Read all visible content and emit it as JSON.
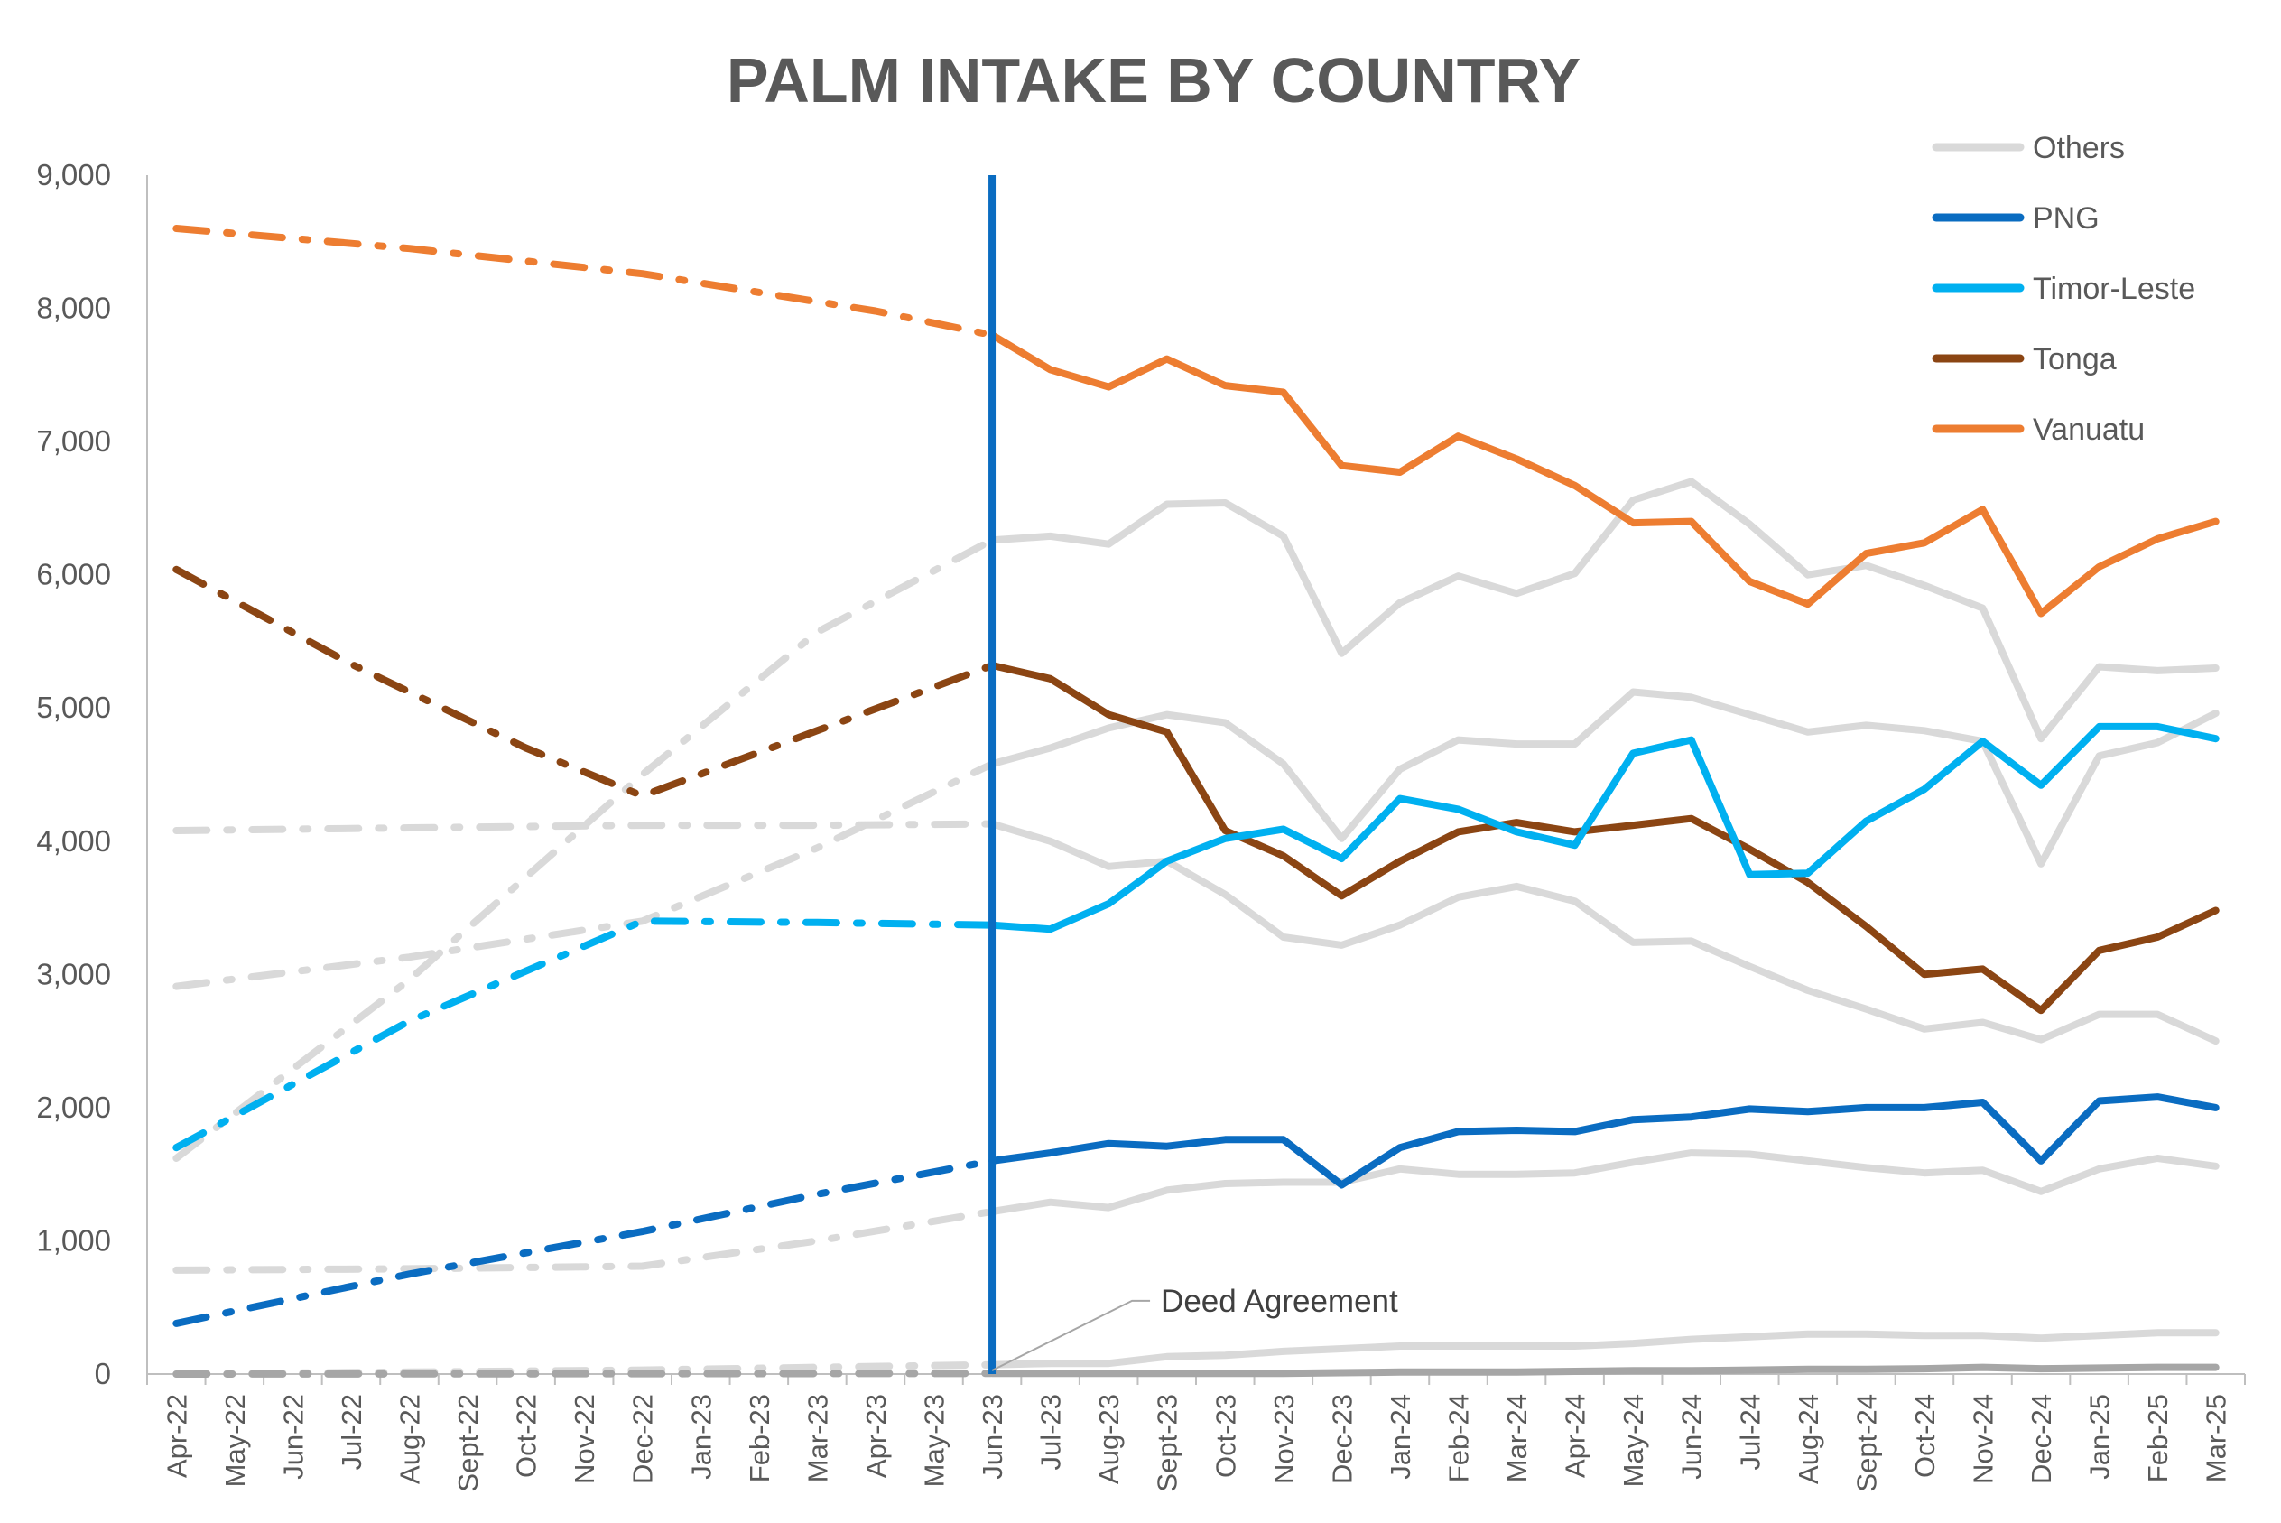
{
  "chart_data": {
    "type": "line",
    "title": "PALM INTAKE BY COUNTRY",
    "xlabel": "",
    "ylabel": "",
    "ylim": [
      0,
      9000
    ],
    "yticks": [
      0,
      1000,
      2000,
      3000,
      4000,
      5000,
      6000,
      7000,
      8000,
      9000
    ],
    "ytick_labels": [
      "0",
      "1,000",
      "2,000",
      "3,000",
      "4,000",
      "5,000",
      "6,000",
      "7,000",
      "8,000",
      "9,000"
    ],
    "categories": [
      "Apr-22",
      "May-22",
      "Jun-22",
      "Jul-22",
      "Aug-22",
      "Sept-22",
      "Oct-22",
      "Nov-22",
      "Dec-22",
      "Jan-23",
      "Feb-23",
      "Mar-23",
      "Apr-23",
      "May-23",
      "Jun-23",
      "Jul-23",
      "Aug-23",
      "Sept-23",
      "Oct-23",
      "Nov-23",
      "Dec-23",
      "Jan-24",
      "Feb-24",
      "Mar-24",
      "Apr-24",
      "May-24",
      "Jun-24",
      "Jul-24",
      "Aug-24",
      "Sept-24",
      "Oct-24",
      "Nov-24",
      "Dec-24",
      "Jan-25",
      "Feb-25",
      "Mar-25"
    ],
    "projection_end_category": "Jun-23",
    "legend_position": "top-right",
    "grid": false,
    "series": [
      {
        "name": "Vanuatu",
        "color": "#ED7D31",
        "sparse_points": [
          [
            0,
            8600
          ],
          [
            4,
            8450
          ],
          [
            8,
            8260
          ],
          [
            12,
            7980
          ],
          [
            14,
            7800
          ]
        ],
        "values": [
          null,
          null,
          null,
          null,
          null,
          null,
          null,
          null,
          null,
          null,
          null,
          null,
          null,
          null,
          7800,
          7540,
          7410,
          7620,
          7420,
          7370,
          6820,
          6770,
          7040,
          6870,
          6670,
          6390,
          6400,
          5950,
          5780,
          6160,
          6240,
          6490,
          5710,
          6060,
          6270,
          6400
        ]
      },
      {
        "name": "Tonga",
        "color": "#8B4513",
        "sparse_points": [
          [
            0,
            6040
          ],
          [
            3,
            5330
          ],
          [
            6,
            4700
          ],
          [
            8,
            4340
          ],
          [
            11,
            4830
          ],
          [
            14,
            5320
          ]
        ],
        "values": [
          null,
          null,
          null,
          null,
          null,
          null,
          null,
          null,
          null,
          null,
          null,
          null,
          null,
          null,
          5320,
          5220,
          4950,
          4820,
          4080,
          3890,
          3590,
          3850,
          4070,
          4140,
          4070,
          4120,
          4170,
          3940,
          3690,
          3360,
          3000,
          3040,
          2730,
          3180,
          3280,
          3480
        ]
      },
      {
        "name": "Timor-Leste",
        "color": "#00B0F0",
        "sparse_points": [
          [
            0,
            1700
          ],
          [
            4,
            2650
          ],
          [
            8,
            3400
          ],
          [
            11,
            3390
          ],
          [
            14,
            3370
          ]
        ],
        "values": [
          null,
          null,
          null,
          null,
          null,
          null,
          null,
          null,
          null,
          null,
          null,
          null,
          null,
          null,
          3370,
          3340,
          3530,
          3850,
          4020,
          4090,
          3870,
          4320,
          4240,
          4070,
          3970,
          4660,
          4760,
          3750,
          3760,
          4150,
          4390,
          4750,
          4420,
          4860,
          4860,
          4770
        ]
      },
      {
        "name": "PNG",
        "color": "#0A6CC1",
        "sparse_points": [
          [
            0,
            380
          ],
          [
            4,
            750
          ],
          [
            8,
            1070
          ],
          [
            11,
            1350
          ],
          [
            14,
            1600
          ]
        ],
        "values": [
          null,
          null,
          null,
          null,
          null,
          null,
          null,
          null,
          null,
          null,
          null,
          null,
          null,
          null,
          1600,
          1660,
          1730,
          1710,
          1760,
          1760,
          1420,
          1700,
          1820,
          1830,
          1820,
          1910,
          1930,
          1990,
          1970,
          2000,
          2000,
          2040,
          1600,
          2050,
          2080,
          2000
        ]
      },
      {
        "name": "Others",
        "color": "#D9D9D9",
        "sparse_points": [
          [
            0,
            1620
          ],
          [
            4,
            2960
          ],
          [
            8,
            4500
          ],
          [
            11,
            5570
          ],
          [
            14,
            6260
          ]
        ],
        "values": [
          null,
          null,
          null,
          null,
          null,
          null,
          null,
          null,
          null,
          null,
          null,
          null,
          null,
          null,
          6260,
          6290,
          6230,
          6530,
          6540,
          6290,
          5410,
          5790,
          5990,
          5860,
          6010,
          6560,
          6700,
          6380,
          6000,
          6070,
          5920,
          5750,
          4770,
          5310,
          5280,
          5300
        ]
      },
      {
        "name": "",
        "color": "#D9D9D9",
        "sparse_points": [
          [
            0,
            4080
          ],
          [
            4,
            4100
          ],
          [
            8,
            4120
          ],
          [
            11,
            4120
          ],
          [
            14,
            4130
          ]
        ],
        "values": [
          null,
          null,
          null,
          null,
          null,
          null,
          null,
          null,
          null,
          null,
          null,
          null,
          null,
          null,
          4130,
          4000,
          3810,
          3850,
          3600,
          3280,
          3220,
          3370,
          3580,
          3660,
          3550,
          3240,
          3250,
          3060,
          2880,
          2740,
          2590,
          2640,
          2510,
          2700,
          2700,
          2500
        ]
      },
      {
        "name": "",
        "color": "#D9D9D9",
        "sparse_points": [
          [
            0,
            2910
          ],
          [
            4,
            3130
          ],
          [
            8,
            3400
          ],
          [
            11,
            3950
          ],
          [
            14,
            4580
          ]
        ],
        "values": [
          null,
          null,
          null,
          null,
          null,
          null,
          null,
          null,
          null,
          null,
          null,
          null,
          null,
          null,
          4580,
          4700,
          4850,
          4950,
          4890,
          4580,
          4020,
          4540,
          4760,
          4730,
          4730,
          5120,
          5080,
          4950,
          4820,
          4870,
          4830,
          4750,
          3830,
          4640,
          4740,
          4960
        ]
      },
      {
        "name": "",
        "color": "#D9D9D9",
        "sparse_points": [
          [
            0,
            780
          ],
          [
            4,
            790
          ],
          [
            8,
            810
          ],
          [
            11,
            1000
          ],
          [
            14,
            1220
          ]
        ],
        "values": [
          null,
          null,
          null,
          null,
          null,
          null,
          null,
          null,
          null,
          null,
          null,
          null,
          null,
          null,
          1220,
          1290,
          1250,
          1380,
          1430,
          1440,
          1440,
          1540,
          1500,
          1500,
          1510,
          1590,
          1660,
          1650,
          1600,
          1550,
          1510,
          1530,
          1370,
          1540,
          1620,
          1560
        ]
      },
      {
        "name": "",
        "color": "#D9D9D9",
        "sparse_points": [
          [
            0,
            0
          ],
          [
            4,
            15
          ],
          [
            8,
            30
          ],
          [
            11,
            50
          ],
          [
            14,
            70
          ]
        ],
        "values": [
          null,
          null,
          null,
          null,
          null,
          null,
          null,
          null,
          null,
          null,
          null,
          null,
          null,
          null,
          70,
          80,
          80,
          130,
          140,
          170,
          190,
          210,
          210,
          210,
          210,
          230,
          260,
          280,
          300,
          300,
          290,
          290,
          270,
          290,
          310,
          310
        ]
      },
      {
        "name": "",
        "color": "#A6A6A6",
        "sparse_points": [
          [
            0,
            0
          ],
          [
            14,
            5
          ]
        ],
        "values": [
          null,
          null,
          null,
          null,
          null,
          null,
          null,
          null,
          null,
          null,
          null,
          null,
          null,
          null,
          5,
          5,
          5,
          5,
          5,
          5,
          10,
          15,
          15,
          15,
          20,
          25,
          25,
          30,
          35,
          35,
          40,
          50,
          40,
          45,
          50,
          50
        ]
      }
    ],
    "annotations": [
      {
        "text": "Deed Agreement",
        "category": "Jun-23"
      }
    ]
  },
  "legend": {
    "items": [
      {
        "label": "Others",
        "color": "#D9D9D9"
      },
      {
        "label": "PNG",
        "color": "#0A6CC1"
      },
      {
        "label": "Timor-Leste",
        "color": "#00B0F0"
      },
      {
        "label": "Tonga",
        "color": "#8B4513"
      },
      {
        "label": "Vanuatu",
        "color": "#ED7D31"
      }
    ]
  },
  "reference_line": {
    "label": "Deed Agreement",
    "category": "Jun-23",
    "color": "#0A6CC1"
  }
}
